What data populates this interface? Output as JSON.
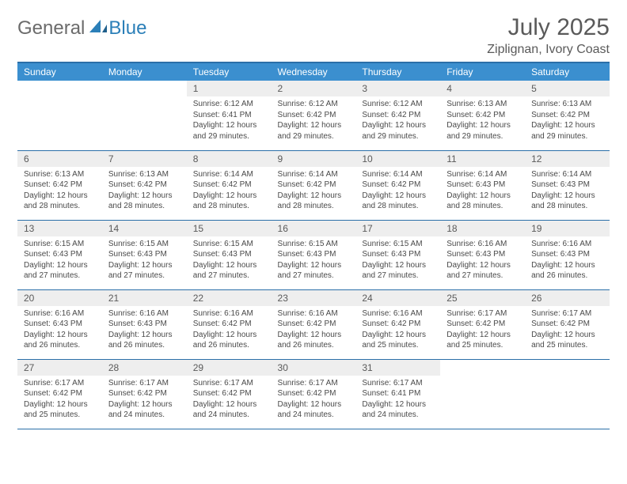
{
  "logo": {
    "text1": "General",
    "text2": "Blue"
  },
  "title": "July 2025",
  "location": "Ziplignan, Ivory Coast",
  "colors": {
    "header_bg": "#3b8fcf",
    "header_text": "#ffffff",
    "border": "#2b6fa8",
    "daynum_bg": "#eeeeee",
    "text": "#5a5a5a",
    "logo_gray": "#6b6b6b",
    "logo_blue": "#2b7fb8"
  },
  "dayHeaders": [
    "Sunday",
    "Monday",
    "Tuesday",
    "Wednesday",
    "Thursday",
    "Friday",
    "Saturday"
  ],
  "firstDayOffset": 2,
  "daysInMonth": 31,
  "labels": {
    "sunrise": "Sunrise:",
    "sunset": "Sunset:",
    "daylight": "Daylight:"
  },
  "days": {
    "1": {
      "sunrise": "6:12 AM",
      "sunset": "6:41 PM",
      "daylight": "12 hours and 29 minutes."
    },
    "2": {
      "sunrise": "6:12 AM",
      "sunset": "6:42 PM",
      "daylight": "12 hours and 29 minutes."
    },
    "3": {
      "sunrise": "6:12 AM",
      "sunset": "6:42 PM",
      "daylight": "12 hours and 29 minutes."
    },
    "4": {
      "sunrise": "6:13 AM",
      "sunset": "6:42 PM",
      "daylight": "12 hours and 29 minutes."
    },
    "5": {
      "sunrise": "6:13 AM",
      "sunset": "6:42 PM",
      "daylight": "12 hours and 29 minutes."
    },
    "6": {
      "sunrise": "6:13 AM",
      "sunset": "6:42 PM",
      "daylight": "12 hours and 28 minutes."
    },
    "7": {
      "sunrise": "6:13 AM",
      "sunset": "6:42 PM",
      "daylight": "12 hours and 28 minutes."
    },
    "8": {
      "sunrise": "6:14 AM",
      "sunset": "6:42 PM",
      "daylight": "12 hours and 28 minutes."
    },
    "9": {
      "sunrise": "6:14 AM",
      "sunset": "6:42 PM",
      "daylight": "12 hours and 28 minutes."
    },
    "10": {
      "sunrise": "6:14 AM",
      "sunset": "6:42 PM",
      "daylight": "12 hours and 28 minutes."
    },
    "11": {
      "sunrise": "6:14 AM",
      "sunset": "6:43 PM",
      "daylight": "12 hours and 28 minutes."
    },
    "12": {
      "sunrise": "6:14 AM",
      "sunset": "6:43 PM",
      "daylight": "12 hours and 28 minutes."
    },
    "13": {
      "sunrise": "6:15 AM",
      "sunset": "6:43 PM",
      "daylight": "12 hours and 27 minutes."
    },
    "14": {
      "sunrise": "6:15 AM",
      "sunset": "6:43 PM",
      "daylight": "12 hours and 27 minutes."
    },
    "15": {
      "sunrise": "6:15 AM",
      "sunset": "6:43 PM",
      "daylight": "12 hours and 27 minutes."
    },
    "16": {
      "sunrise": "6:15 AM",
      "sunset": "6:43 PM",
      "daylight": "12 hours and 27 minutes."
    },
    "17": {
      "sunrise": "6:15 AM",
      "sunset": "6:43 PM",
      "daylight": "12 hours and 27 minutes."
    },
    "18": {
      "sunrise": "6:16 AM",
      "sunset": "6:43 PM",
      "daylight": "12 hours and 27 minutes."
    },
    "19": {
      "sunrise": "6:16 AM",
      "sunset": "6:43 PM",
      "daylight": "12 hours and 26 minutes."
    },
    "20": {
      "sunrise": "6:16 AM",
      "sunset": "6:43 PM",
      "daylight": "12 hours and 26 minutes."
    },
    "21": {
      "sunrise": "6:16 AM",
      "sunset": "6:43 PM",
      "daylight": "12 hours and 26 minutes."
    },
    "22": {
      "sunrise": "6:16 AM",
      "sunset": "6:42 PM",
      "daylight": "12 hours and 26 minutes."
    },
    "23": {
      "sunrise": "6:16 AM",
      "sunset": "6:42 PM",
      "daylight": "12 hours and 26 minutes."
    },
    "24": {
      "sunrise": "6:16 AM",
      "sunset": "6:42 PM",
      "daylight": "12 hours and 25 minutes."
    },
    "25": {
      "sunrise": "6:17 AM",
      "sunset": "6:42 PM",
      "daylight": "12 hours and 25 minutes."
    },
    "26": {
      "sunrise": "6:17 AM",
      "sunset": "6:42 PM",
      "daylight": "12 hours and 25 minutes."
    },
    "27": {
      "sunrise": "6:17 AM",
      "sunset": "6:42 PM",
      "daylight": "12 hours and 25 minutes."
    },
    "28": {
      "sunrise": "6:17 AM",
      "sunset": "6:42 PM",
      "daylight": "12 hours and 24 minutes."
    },
    "29": {
      "sunrise": "6:17 AM",
      "sunset": "6:42 PM",
      "daylight": "12 hours and 24 minutes."
    },
    "30": {
      "sunrise": "6:17 AM",
      "sunset": "6:42 PM",
      "daylight": "12 hours and 24 minutes."
    },
    "31": {
      "sunrise": "6:17 AM",
      "sunset": "6:41 PM",
      "daylight": "12 hours and 24 minutes."
    }
  }
}
